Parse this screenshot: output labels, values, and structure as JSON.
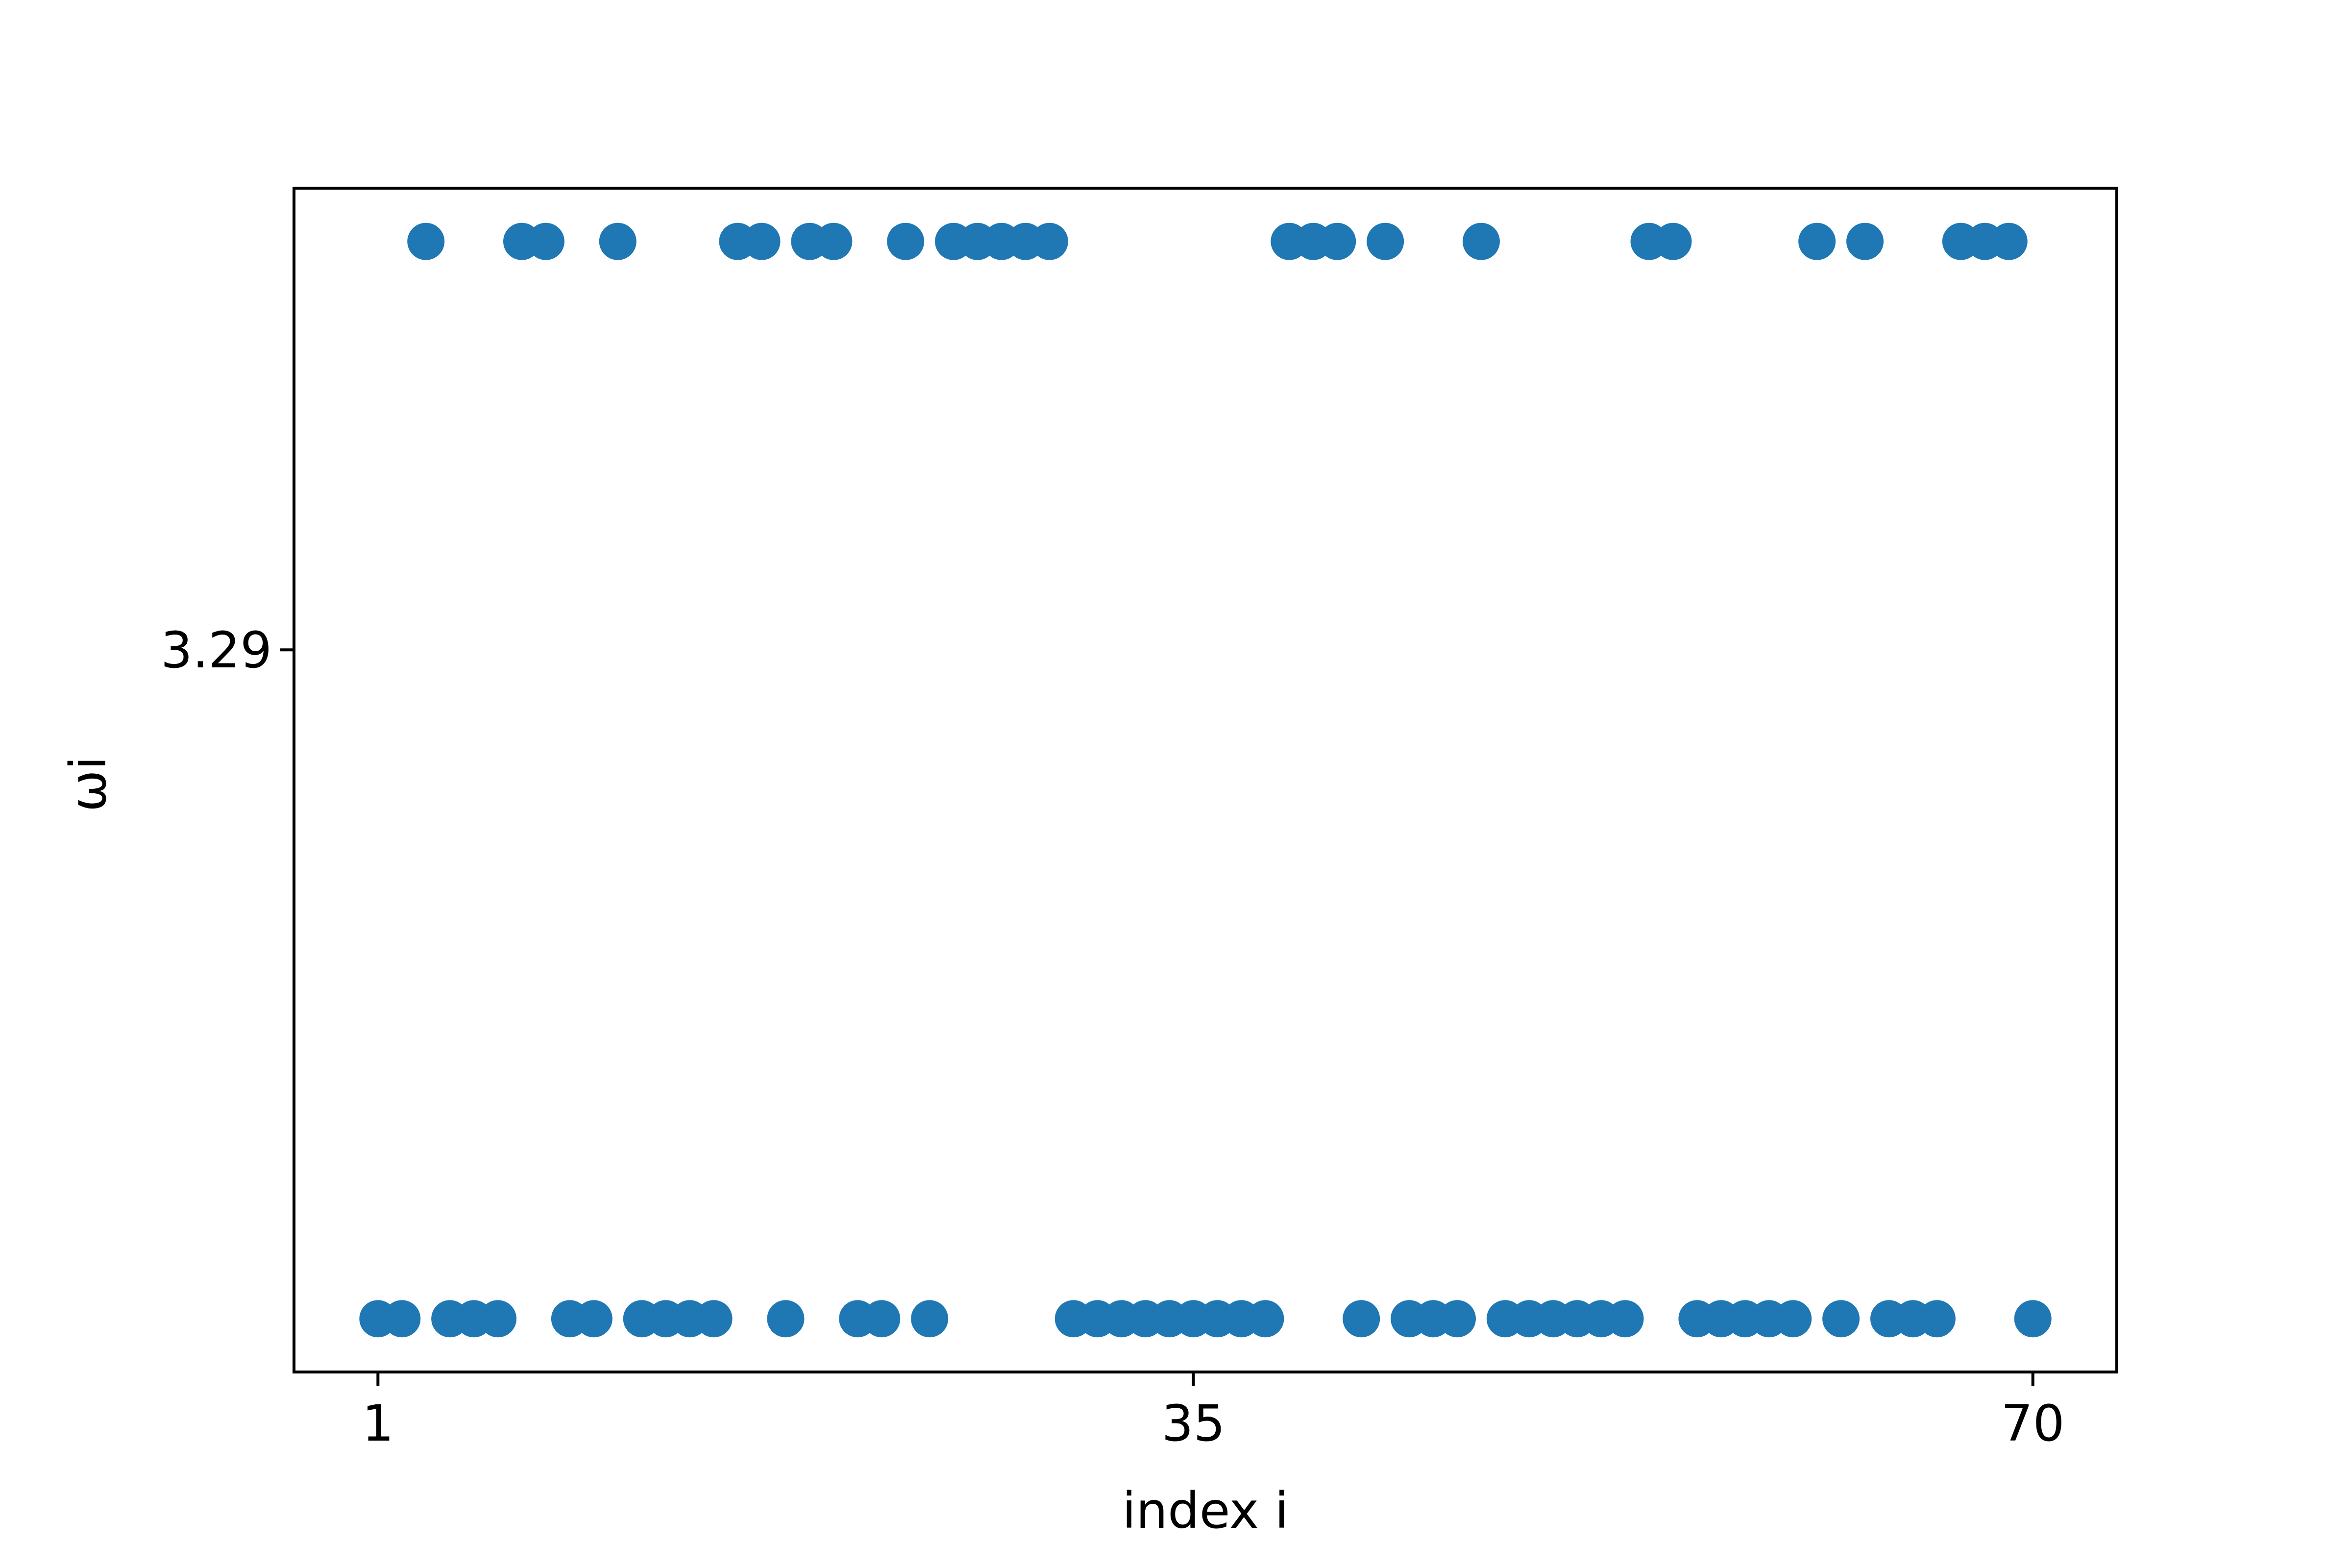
{
  "chart_data": {
    "type": "scatter",
    "title": "",
    "xlabel": "index i",
    "ylabel": "ωi",
    "xticks": [
      1,
      35,
      70
    ],
    "xtick_labels": [
      "1",
      "35",
      "70"
    ],
    "yticks": [
      3.29
    ],
    "ytick_labels": [
      "3.29"
    ],
    "xlim": [
      -2.5,
      73.5
    ],
    "ylim": [
      0.0,
      1.0
    ],
    "grid": false,
    "legend": "none",
    "y_levels": {
      "high": 0.955,
      "low": 0.045
    },
    "series": [
      {
        "color": "#1f77b4",
        "high_x": [
          3,
          7,
          8,
          11,
          16,
          17,
          19,
          20,
          23,
          25,
          26,
          27,
          28,
          29,
          39,
          40,
          41,
          43,
          47,
          54,
          55,
          61,
          63,
          67,
          68,
          69
        ],
        "low_x": [
          1,
          2,
          4,
          5,
          6,
          9,
          10,
          12,
          13,
          14,
          15,
          18,
          21,
          22,
          24,
          30,
          31,
          32,
          33,
          34,
          35,
          36,
          37,
          38,
          42,
          44,
          45,
          46,
          48,
          49,
          50,
          51,
          52,
          53,
          56,
          57,
          58,
          59,
          60,
          62,
          64,
          65,
          66,
          70
        ]
      }
    ]
  }
}
